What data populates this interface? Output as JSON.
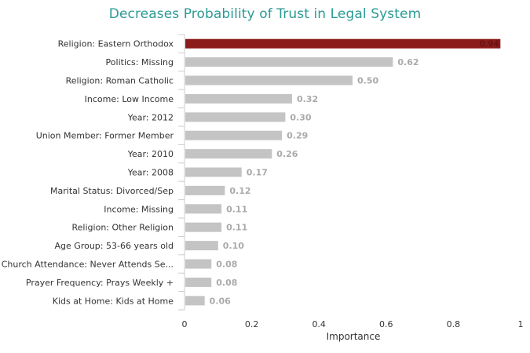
{
  "chart_data": {
    "type": "bar",
    "orientation": "horizontal",
    "title": "Decreases Probability of Trust in Legal System",
    "xlabel": "Importance",
    "ylabel": "",
    "xlim": [
      0,
      1
    ],
    "xticks": [
      "0",
      "0.2",
      "0.4",
      "0.6",
      "0.8",
      "1"
    ],
    "grid": false,
    "highlight_color": "#8b1a1a",
    "bar_color": "#c4c4c4",
    "title_color": "#2b9a94",
    "categories": [
      "Religion: Eastern Orthodox",
      "Politics: Missing",
      "Religion: Roman Catholic",
      "Income: Low Income",
      "Year: 2012",
      "Union Member: Former Member",
      "Year: 2010",
      "Year: 2008",
      "Marital Status: Divorced/Sep",
      "Income: Missing",
      "Religion: Other Religion",
      "Age Group: 53-66 years old",
      "Church Attendance: Never Attends Se...",
      "Prayer Frequency: Prays Weekly +",
      "Kids at Home: Kids at Home"
    ],
    "values": [
      0.94,
      0.62,
      0.5,
      0.32,
      0.3,
      0.29,
      0.26,
      0.17,
      0.12,
      0.11,
      0.11,
      0.1,
      0.08,
      0.08,
      0.06
    ],
    "data_labels": [
      "0.94",
      "0.62",
      "0.50",
      "0.32",
      "0.30",
      "0.29",
      "0.26",
      "0.17",
      "0.12",
      "0.11",
      "0.11",
      "0.10",
      "0.08",
      "0.08",
      "0.06"
    ]
  }
}
